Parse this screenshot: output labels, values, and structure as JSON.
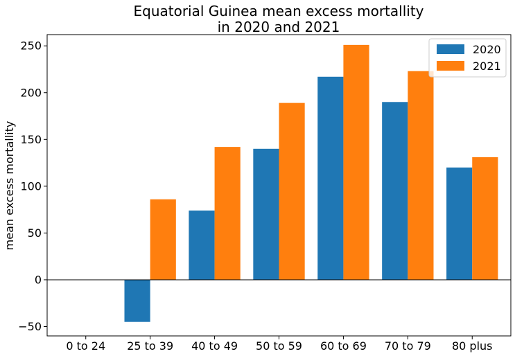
{
  "chart_data": {
    "type": "bar",
    "title_lines": [
      "Equatorial Guinea mean excess mortallity",
      "in 2020 and 2021"
    ],
    "xlabel": "",
    "ylabel": "mean excess mortallity",
    "categories": [
      "0 to 24",
      "25 to 39",
      "40 to 49",
      "50 to 59",
      "60 to 69",
      "70 to 79",
      "80 plus"
    ],
    "series": [
      {
        "name": "2020",
        "color": "#1f77b4",
        "values": [
          0,
          -45,
          74,
          140,
          217,
          190,
          120
        ]
      },
      {
        "name": "2021",
        "color": "#ff7f0e",
        "values": [
          0,
          86,
          142,
          189,
          251,
          223,
          131
        ]
      }
    ],
    "ylim": [
      -60,
      262
    ],
    "yticks": [
      -50,
      0,
      50,
      100,
      150,
      200,
      250
    ],
    "ytick_labels": [
      "−50",
      "0",
      "50",
      "100",
      "150",
      "200",
      "250"
    ],
    "zero_line": true,
    "grid": false,
    "legend_position": "top-right"
  }
}
